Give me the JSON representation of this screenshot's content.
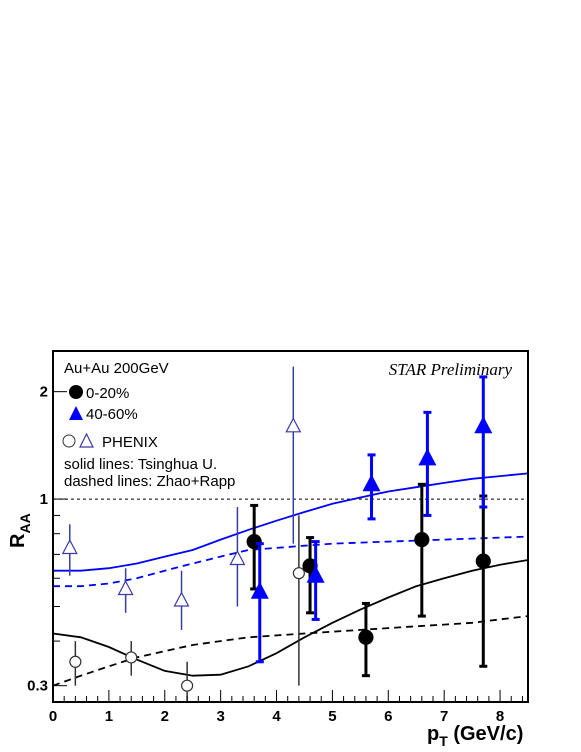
{
  "chart_data": {
    "type": "scatter",
    "title": "",
    "annotation": "STAR Preliminary",
    "system_label": "Au+Au 200GeV",
    "xlabel": "p",
    "xlabel_sub": "T",
    "xlabel_unit": " (GeV/c)",
    "ylabel": "R",
    "ylabel_sub": "AA",
    "xlim": [
      0,
      8.5
    ],
    "ylim": [
      0.27,
      2.6
    ],
    "yscale": "log",
    "x_ticks": [
      "0",
      "1",
      "2",
      "3",
      "4",
      "5",
      "6",
      "7",
      "8"
    ],
    "y_ticks": [
      "0.3",
      "1",
      "2"
    ],
    "legend": {
      "star_central": "0-20%",
      "star_peripheral": "40-60%",
      "phenix": "PHENIX",
      "solid_note": "solid lines: Tsinghua U.",
      "dashed_note": "dashed lines: Zhao+Rapp"
    },
    "colors": {
      "black": "#000000",
      "blue": "#0000ff",
      "phenix_blue": "#3a3aa8",
      "phenix_black": "#333333"
    },
    "reference_line": 1.0,
    "series": [
      {
        "name": "0-20%",
        "marker": "filled-circle",
        "color": "#000000",
        "points": [
          {
            "x": 3.6,
            "y": 0.76,
            "err_lo": 0.56,
            "err_hi": 0.96
          },
          {
            "x": 4.6,
            "y": 0.65,
            "err_lo": 0.48,
            "err_hi": 0.78
          },
          {
            "x": 5.6,
            "y": 0.41,
            "err_lo": 0.32,
            "err_hi": 0.51
          },
          {
            "x": 6.6,
            "y": 0.77,
            "err_lo": 0.47,
            "err_hi": 1.1
          },
          {
            "x": 7.7,
            "y": 0.67,
            "err_lo": 0.34,
            "err_hi": 1.02
          }
        ]
      },
      {
        "name": "40-60%",
        "marker": "filled-triangle",
        "color": "#0000ff",
        "points": [
          {
            "x": 3.7,
            "y": 0.55,
            "err_lo": 0.35,
            "err_hi": 0.75
          },
          {
            "x": 4.7,
            "y": 0.61,
            "err_lo": 0.46,
            "err_hi": 0.76
          },
          {
            "x": 5.7,
            "y": 1.1,
            "err_lo": 0.88,
            "err_hi": 1.33
          },
          {
            "x": 6.7,
            "y": 1.3,
            "err_lo": 0.9,
            "err_hi": 1.75
          },
          {
            "x": 7.7,
            "y": 1.6,
            "err_lo": 0.95,
            "err_hi": 2.2
          }
        ]
      },
      {
        "marker": "open-triangle",
        "color": "#3a3aa8",
        "points": [
          {
            "x": 0.3,
            "y": 0.73,
            "err_lo": 0.61,
            "err_hi": 0.85
          },
          {
            "x": 1.3,
            "y": 0.56,
            "err_lo": 0.48,
            "err_hi": 0.64
          },
          {
            "x": 2.3,
            "y": 0.52,
            "err_lo": 0.43,
            "err_hi": 0.63
          },
          {
            "x": 3.3,
            "y": 0.68,
            "err_lo": 0.5,
            "err_hi": 0.95
          },
          {
            "x": 4.3,
            "y": 1.6,
            "err_lo": 0.75,
            "err_hi": 2.35
          }
        ]
      },
      {
        "marker": "open-circle",
        "color": "#333333",
        "points": [
          {
            "x": 0.4,
            "y": 0.35,
            "err_lo": 0.3,
            "err_hi": 0.4
          },
          {
            "x": 1.4,
            "y": 0.36,
            "err_lo": 0.32,
            "err_hi": 0.4
          },
          {
            "x": 2.4,
            "y": 0.3,
            "err_lo": 0.2,
            "err_hi": 0.35
          },
          {
            "x": 4.4,
            "y": 0.62,
            "err_lo": 0.3,
            "err_hi": 0.9
          }
        ]
      }
    ],
    "curves": [
      {
        "style": "solid",
        "color": "#0000ff",
        "x": [
          0,
          0.5,
          1,
          1.5,
          2,
          2.5,
          3,
          3.5,
          4,
          4.5,
          5,
          5.5,
          6,
          6.5,
          7,
          7.5,
          8,
          8.5
        ],
        "y": [
          0.63,
          0.63,
          0.64,
          0.66,
          0.69,
          0.72,
          0.77,
          0.82,
          0.87,
          0.92,
          0.97,
          1.01,
          1.05,
          1.08,
          1.11,
          1.14,
          1.16,
          1.18
        ]
      },
      {
        "style": "dashed",
        "color": "#0000ff",
        "x": [
          0,
          0.5,
          1,
          1.5,
          2,
          2.5,
          3,
          3.5,
          4,
          4.5,
          5,
          5.5,
          6,
          6.5,
          7,
          7.5,
          8,
          8.5
        ],
        "y": [
          0.57,
          0.57,
          0.58,
          0.6,
          0.63,
          0.66,
          0.69,
          0.72,
          0.73,
          0.74,
          0.75,
          0.755,
          0.76,
          0.765,
          0.77,
          0.775,
          0.78,
          0.785
        ]
      },
      {
        "style": "solid",
        "color": "#000000",
        "x": [
          0,
          0.5,
          1,
          1.5,
          2,
          2.5,
          3,
          3.5,
          4,
          4.5,
          5,
          5.5,
          6,
          6.5,
          7,
          7.5,
          8,
          8.5
        ],
        "y": [
          0.42,
          0.41,
          0.385,
          0.355,
          0.33,
          0.32,
          0.322,
          0.34,
          0.37,
          0.41,
          0.45,
          0.49,
          0.53,
          0.57,
          0.6,
          0.63,
          0.655,
          0.675
        ]
      },
      {
        "style": "dashed",
        "color": "#000000",
        "x": [
          0,
          0.5,
          1,
          1.5,
          2,
          2.5,
          3,
          3.5,
          4,
          4.5,
          5,
          5.5,
          6,
          6.5,
          7,
          7.5,
          8,
          8.5
        ],
        "y": [
          0.3,
          0.32,
          0.34,
          0.36,
          0.375,
          0.39,
          0.4,
          0.41,
          0.415,
          0.42,
          0.425,
          0.43,
          0.435,
          0.44,
          0.445,
          0.45,
          0.46,
          0.47
        ]
      }
    ]
  }
}
